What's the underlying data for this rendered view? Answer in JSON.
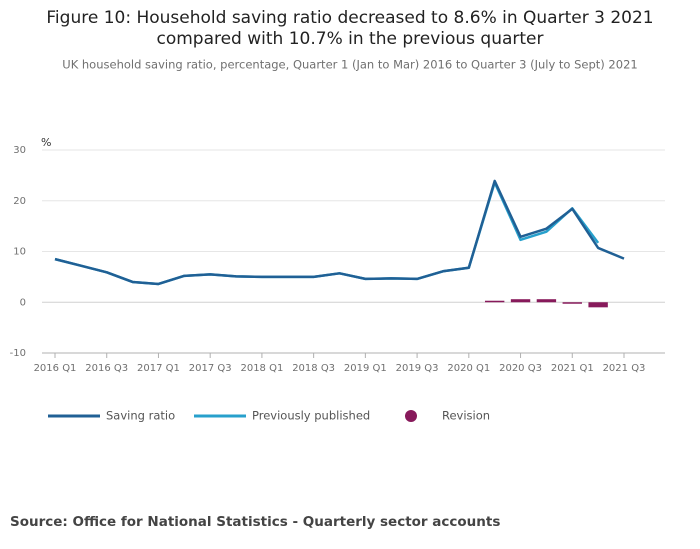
{
  "chart_data": {
    "type": "line",
    "title": [
      "Figure 10: Household saving ratio decreased to 8.6% in Quarter 3 2021",
      "compared with 10.7% in the previous quarter"
    ],
    "subtitle": "UK household saving ratio, percentage, Quarter 1 (Jan to Mar) 2016 to Quarter 3 (July to Sept) 2021",
    "y_label": "%",
    "source": "Source: Office for National Statistics - Quarterly sector accounts",
    "categories": [
      "2016 Q1",
      null,
      "2016 Q3",
      null,
      "2017 Q1",
      null,
      "2017 Q3",
      null,
      "2018 Q1",
      null,
      "2018 Q3",
      null,
      "2019 Q1",
      null,
      "2019 Q3",
      null,
      "2020 Q1",
      null,
      "2020 Q3",
      null,
      "2021 Q1",
      null,
      "2021 Q3"
    ],
    "series": [
      {
        "name": "Saving ratio",
        "color": "#206095",
        "style": "line",
        "values": [
          8.5,
          7.2,
          5.9,
          4.0,
          3.6,
          5.2,
          5.5,
          5.1,
          5.0,
          5.0,
          5.0,
          5.7,
          4.6,
          4.7,
          4.6,
          6.1,
          6.8,
          23.9,
          12.9,
          14.5,
          18.4,
          10.7,
          8.6
        ]
      },
      {
        "name": "Previously published",
        "color": "#27a0cc",
        "style": "line",
        "values": [
          8.5,
          7.2,
          5.9,
          4.0,
          3.6,
          5.2,
          5.5,
          5.1,
          5.0,
          5.0,
          5.0,
          5.7,
          4.6,
          4.7,
          4.6,
          6.1,
          6.8,
          23.6,
          12.3,
          13.9,
          18.5,
          11.7,
          null
        ]
      },
      {
        "name": "Revision",
        "color": "#871a5b",
        "style": "bar",
        "values": [
          null,
          null,
          null,
          null,
          null,
          null,
          null,
          null,
          null,
          null,
          null,
          null,
          null,
          null,
          null,
          null,
          null,
          0.3,
          0.6,
          0.6,
          -0.1,
          -1.0,
          null
        ]
      }
    ],
    "ylim": [
      -10,
      30
    ],
    "yticks": [
      -10,
      0,
      10,
      20,
      30
    ],
    "grid": true
  }
}
